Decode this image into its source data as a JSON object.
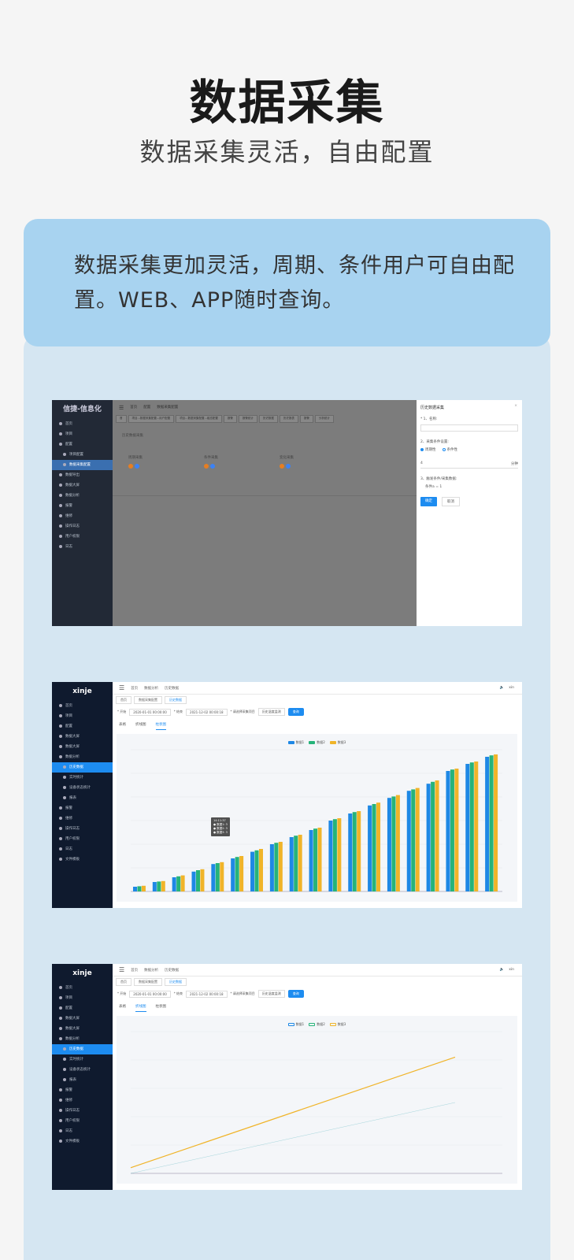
{
  "hero": {
    "title": "数据采集",
    "subtitle": "数据采集灵活，自由配置"
  },
  "card": {
    "text": "数据采集更加灵活，周期、条件用户可自由配置。WEB、APP随时查询。"
  },
  "shot1": {
    "brand": "信捷-信息化",
    "menu": [
      "首页",
      "项目",
      "配置",
      "项目配置",
      "数据采集配置",
      "数据导出",
      "数据大屏",
      "数据分析",
      "报警",
      "维修",
      "操作日志",
      "用户权限",
      "日志"
    ],
    "crumbs": [
      "首页",
      "配置",
      "数据采集配置"
    ],
    "tabs": [
      "首",
      "项目...数据采集配置...用户配置",
      "项目...数据采集配置...组态配置",
      "报警",
      "报警统计",
      "历史数据",
      "历史报表",
      "报警",
      "分析统计"
    ],
    "section": "历史数据采集",
    "cards": [
      "周期采集",
      "条件采集",
      "变化采集"
    ],
    "drawer": {
      "title": "历史数据采集",
      "name_label": "* 1、名称:",
      "cond_label": "2、采集条件设置:",
      "opt_a": "周期性",
      "opt_b": "条件性",
      "period_value": "4",
      "period_unit": "分钟",
      "trigger_label": "3、触发条件/采集数据:",
      "trigger_value": "条件a = 1",
      "ok": "确定",
      "cancel": "取消"
    }
  },
  "shot2": {
    "brand": "xinje",
    "menu": [
      "首页",
      "项目",
      "配置",
      "数据大屏",
      "数据大屏",
      "数据分析",
      "历史数据",
      "实时统计",
      "设备状态统计",
      "报表",
      "报警",
      "维修",
      "操作日志",
      "用户权限",
      "日志",
      "文件模板"
    ],
    "crumbs": [
      "首页",
      "数据分析",
      "历史数据"
    ],
    "tabs": [
      "首页",
      "数据采集配置",
      "历史数据"
    ],
    "start_label": "* 开始",
    "start_value": "2020-01-01 00:00:00",
    "end_label": "* 结束",
    "end_value": "2021-12-02 00:00:18",
    "select_placeholder": "* 请选择采集项目",
    "select_value": "历史温度监测",
    "query": "查询",
    "views": [
      "表格",
      "折线图",
      "柱状图"
    ],
    "user": "xin",
    "tooltip": [
      "14:11:37",
      "● 数据1: 3",
      "● 数据2: 3",
      "● 数据3: 3"
    ]
  },
  "shot3": {
    "brand": "xinje",
    "views": [
      "表格",
      "折线图",
      "柱状图"
    ]
  },
  "chart_data": [
    {
      "type": "bar",
      "series": [
        {
          "name": "数据1",
          "values": [
            1,
            2,
            3,
            4.2,
            5.8,
            7,
            8.4,
            10,
            11.5,
            13,
            15,
            16.5,
            18.2,
            19.8,
            21.3,
            22.8,
            25.5,
            27,
            28.5
          ]
        },
        {
          "name": "数据2",
          "values": [
            1.1,
            2.1,
            3.2,
            4.5,
            6,
            7.3,
            8.7,
            10.3,
            11.8,
            13.3,
            15.3,
            16.8,
            18.5,
            20.1,
            21.6,
            23.2,
            25.8,
            27.3,
            28.8
          ]
        },
        {
          "name": "数据3",
          "values": [
            1.2,
            2.2,
            3.4,
            4.7,
            6.2,
            7.5,
            9,
            10.5,
            12,
            13.5,
            15.5,
            17,
            18.8,
            20.4,
            21.9,
            23.5,
            26,
            27.5,
            29
          ]
        }
      ],
      "ylim": [
        0,
        30
      ],
      "colors": [
        "#1e88e5",
        "#26b37a",
        "#f0b429"
      ]
    },
    {
      "type": "line",
      "series": [
        {
          "name": "数据1",
          "values": [
            0,
            5
          ]
        },
        {
          "name": "数据2",
          "values": [
            0,
            5
          ]
        },
        {
          "name": "数据3",
          "values": [
            0.4,
            8.2
          ]
        }
      ],
      "ylim": [
        0,
        10
      ],
      "colors": [
        "#1e88e5",
        "#26b37a",
        "#f0b429"
      ]
    }
  ]
}
